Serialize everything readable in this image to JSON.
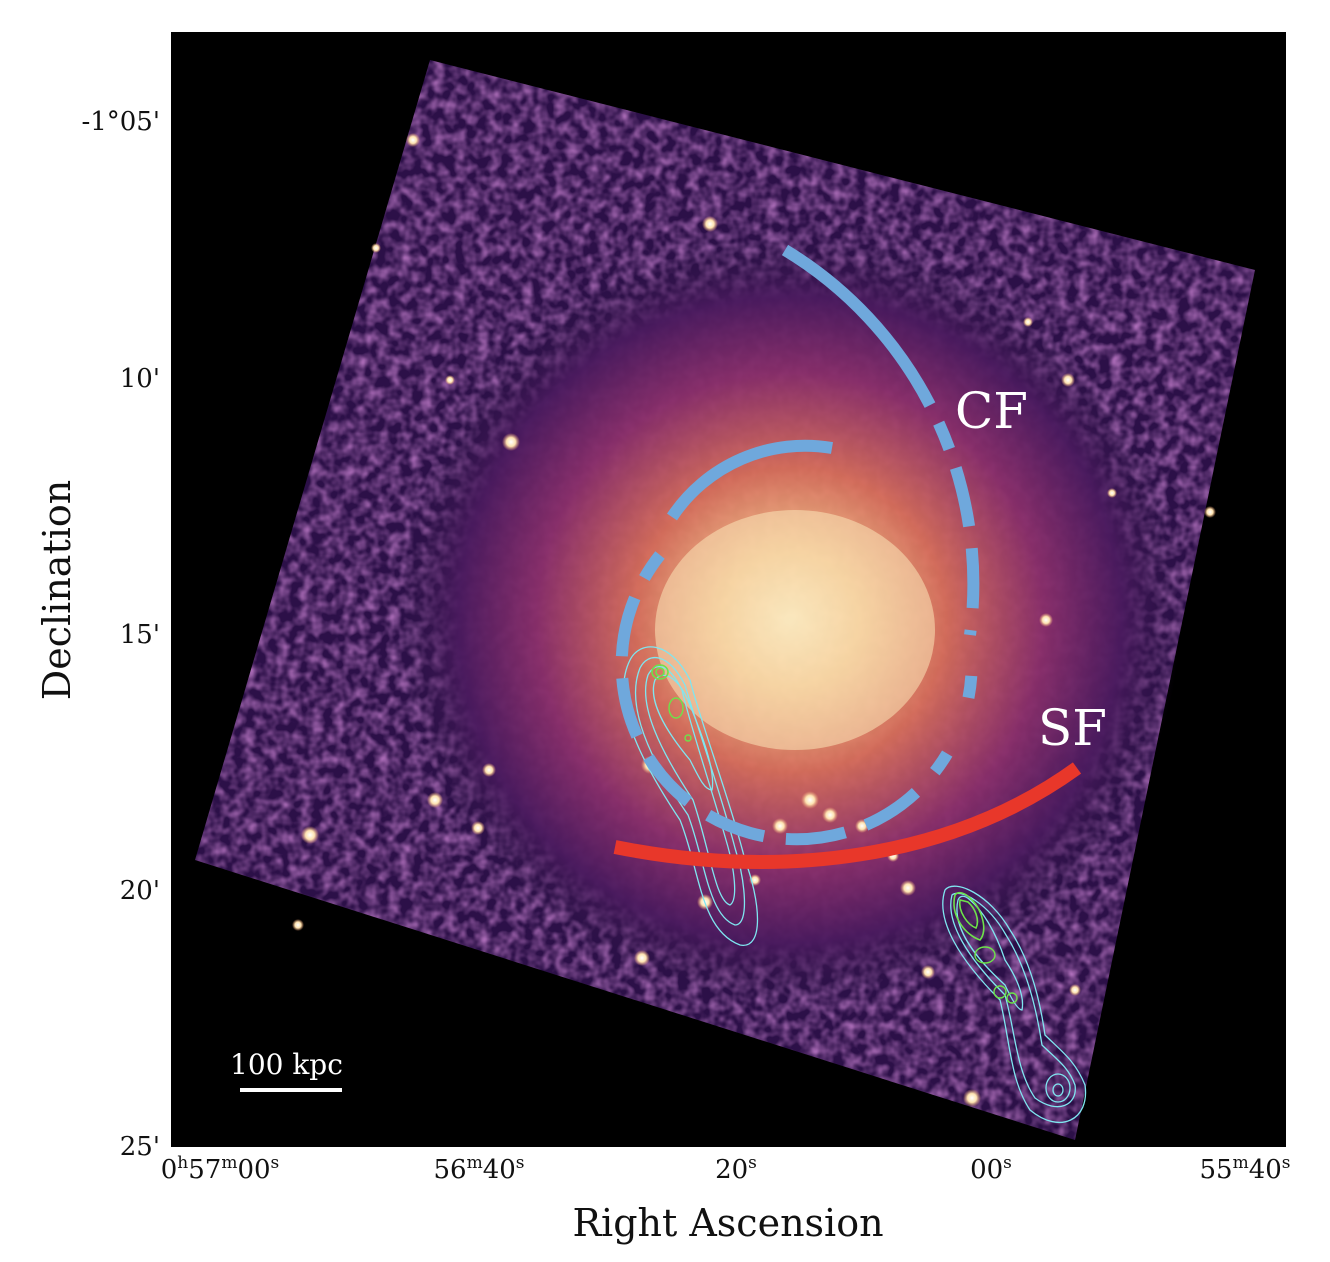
{
  "figure": {
    "x_axis_title": "Right Ascension",
    "y_axis_title": "Declination",
    "x_ticks": [
      {
        "main": "0",
        "h": "h",
        "m1": "57",
        "mm": "m",
        "s1": "00",
        "ss": "s"
      },
      {
        "main": "56",
        "mm": "m",
        "s1": "40",
        "ss": "s"
      },
      {
        "main": "20",
        "ss": "s"
      },
      {
        "main": "00",
        "ss": "s"
      },
      {
        "main": "55",
        "mm": "m",
        "s1": "40",
        "ss": "s"
      }
    ],
    "y_ticks": [
      "-1°05'",
      "10'",
      "15'",
      "20'",
      "25'"
    ],
    "annotations": {
      "cold_front_label": "CF",
      "shock_front_label": "SF"
    },
    "scale_bar": {
      "label": "100 kpc"
    },
    "colors": {
      "cold_front": "#6fa8dc",
      "shock_front": "#e8372a",
      "radio_contours_low": "#7fe6f0",
      "radio_contours_high": "#6de24a",
      "background": "#000000"
    }
  }
}
